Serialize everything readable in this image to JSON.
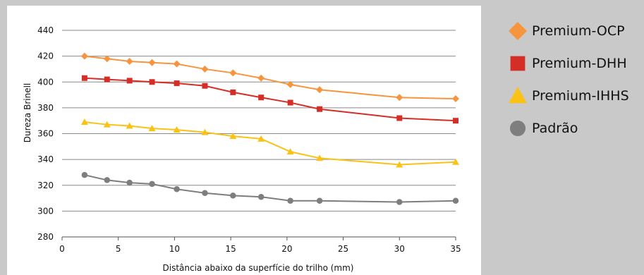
{
  "chart_data": {
    "type": "line",
    "title": "",
    "xlabel": "Distância abaixo da superfície do trilho (mm)",
    "ylabel": "Dureza Brinell",
    "xlim": [
      0,
      35
    ],
    "ylim": [
      280,
      440
    ],
    "xticks": [
      0,
      5,
      10,
      15,
      20,
      25,
      30,
      35
    ],
    "yticks": [
      280,
      300,
      320,
      340,
      360,
      380,
      400,
      420,
      440
    ],
    "grid": "horizontal",
    "legend_position": "right",
    "series": [
      {
        "name": "Premium-OCP",
        "color": "#f7953f",
        "marker": "diamond",
        "points": [
          [
            2,
            420
          ],
          [
            4,
            418
          ],
          [
            6,
            416
          ],
          [
            8,
            415
          ],
          [
            10.2,
            414
          ],
          [
            12.7,
            410
          ],
          [
            15.2,
            407
          ],
          [
            17.7,
            403
          ],
          [
            20.3,
            398
          ],
          [
            22.9,
            394
          ],
          [
            30,
            388
          ],
          [
            35,
            387
          ]
        ]
      },
      {
        "name": "Premium-DHH",
        "color": "#d42e27",
        "marker": "square",
        "points": [
          [
            2,
            403
          ],
          [
            4,
            402
          ],
          [
            6,
            401
          ],
          [
            8,
            400
          ],
          [
            10.2,
            399
          ],
          [
            12.7,
            397
          ],
          [
            15.2,
            392
          ],
          [
            17.7,
            388
          ],
          [
            20.3,
            384
          ],
          [
            22.9,
            379
          ],
          [
            30,
            372
          ],
          [
            35,
            370
          ]
        ]
      },
      {
        "name": "Premium-IHHS",
        "color": "#fbc216",
        "marker": "triangle",
        "points": [
          [
            2,
            369
          ],
          [
            4,
            367
          ],
          [
            6,
            366
          ],
          [
            8,
            364
          ],
          [
            10.2,
            363
          ],
          [
            12.7,
            361
          ],
          [
            15.2,
            358
          ],
          [
            17.7,
            356
          ],
          [
            20.3,
            346
          ],
          [
            22.9,
            341
          ],
          [
            30,
            336
          ],
          [
            35,
            338
          ]
        ]
      },
      {
        "name": "Padrão",
        "color": "#7e7e7e",
        "marker": "circle",
        "points": [
          [
            2,
            328
          ],
          [
            4,
            324
          ],
          [
            6,
            322
          ],
          [
            8,
            321
          ],
          [
            10.2,
            317
          ],
          [
            12.7,
            314
          ],
          [
            15.2,
            312
          ],
          [
            17.7,
            311
          ],
          [
            20.3,
            308
          ],
          [
            22.9,
            308
          ],
          [
            30,
            307
          ],
          [
            35,
            308
          ]
        ]
      }
    ]
  }
}
